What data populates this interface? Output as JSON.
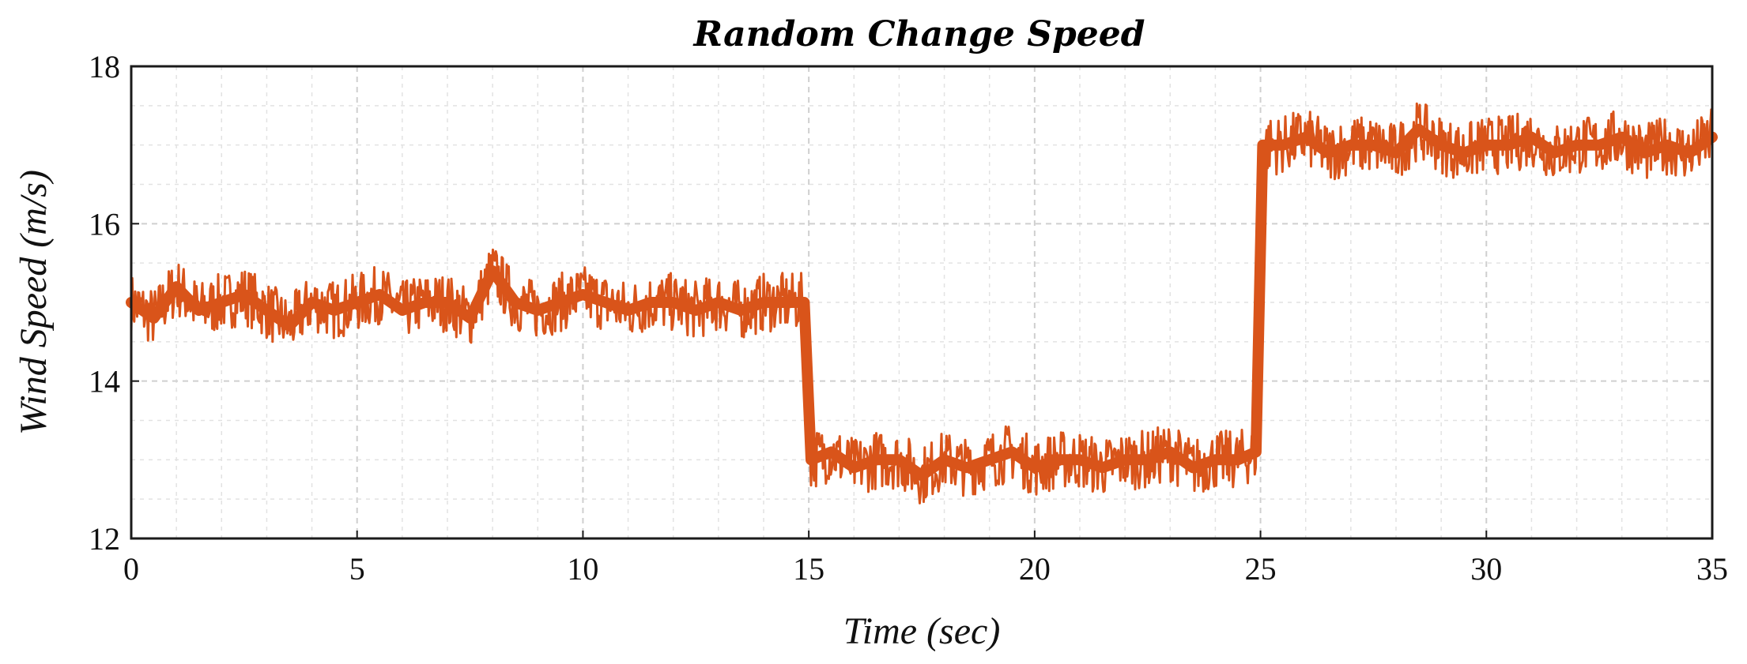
{
  "chart_data": {
    "type": "line",
    "title": "Random Change Speed",
    "xlabel": "Time (sec)",
    "ylabel": "Wind Speed (m/s)",
    "xlim": [
      0,
      35
    ],
    "ylim": [
      12,
      18
    ],
    "xticks": [
      0,
      5,
      10,
      15,
      20,
      25,
      30,
      35
    ],
    "yticks": [
      12,
      14,
      16,
      18
    ],
    "grid": true,
    "minor_grid": true,
    "series_color": "#d9541a",
    "series": [
      {
        "x": [
          0,
          0.5,
          1,
          1.5,
          2,
          2.5,
          3,
          3.5,
          4,
          4.5,
          5,
          5.5,
          6,
          6.5,
          7,
          7.5,
          8,
          8.5,
          9,
          9.5,
          10,
          10.5,
          11,
          11.5,
          12,
          12.5,
          13,
          13.5,
          14,
          14.5,
          14.9,
          15.05,
          15.5,
          16,
          16.5,
          17,
          17.5,
          18,
          18.5,
          19,
          19.5,
          20,
          20.5,
          21,
          21.5,
          22,
          22.5,
          23,
          23.5,
          24,
          24.5,
          24.9,
          25.05,
          25.5,
          26,
          26.5,
          27,
          27.5,
          28,
          28.5,
          29,
          29.5,
          30,
          30.5,
          31,
          31.5,
          32,
          32.5,
          33,
          33.5,
          34,
          34.5,
          35
        ],
        "y": [
          15.0,
          14.8,
          15.2,
          14.9,
          15.0,
          15.1,
          14.9,
          14.7,
          15.0,
          14.9,
          15.0,
          15.1,
          14.9,
          15.0,
          15.0,
          14.8,
          15.4,
          15.0,
          14.9,
          15.0,
          15.1,
          15.0,
          14.9,
          15.0,
          15.0,
          14.9,
          15.0,
          14.9,
          15.0,
          15.0,
          15.0,
          13.0,
          13.1,
          12.9,
          13.0,
          13.0,
          12.8,
          13.0,
          12.9,
          13.0,
          13.1,
          12.9,
          13.0,
          13.0,
          12.9,
          13.0,
          13.0,
          13.1,
          12.9,
          13.0,
          13.0,
          13.1,
          17.0,
          17.0,
          17.1,
          16.9,
          17.0,
          17.0,
          16.9,
          17.2,
          17.0,
          16.9,
          17.0,
          17.0,
          17.1,
          16.9,
          17.0,
          17.0,
          17.1,
          16.9,
          17.0,
          16.9,
          17.1
        ]
      }
    ]
  }
}
